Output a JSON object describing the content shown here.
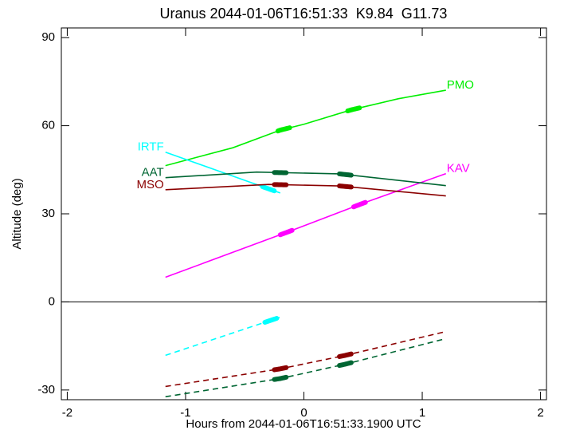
{
  "chart_data": {
    "type": "line",
    "title": "Uranus 2044-01-06T16:51:33  K9.84  G11.73",
    "xlabel": "Hours from 2044-01-06T16:51:33.1900 UTC",
    "ylabel": "Altitude (deg)",
    "xlim": [
      -2.05,
      2.05
    ],
    "xticks": [
      -2,
      -1,
      0,
      1,
      2
    ],
    "ylim": [
      -33.3,
      93.3
    ],
    "yticks": [
      -30,
      0,
      30,
      60,
      90
    ],
    "hline": 0,
    "series": [
      {
        "name": "PMO",
        "color": "#00ee00",
        "style": "solid",
        "label_side": "right",
        "x": [
          -1.17,
          -0.6,
          -0.2,
          0,
          0.4,
          0.8,
          1.2
        ],
        "values": [
          46.4,
          52.5,
          58.5,
          60.5,
          65.4,
          69.2,
          72.1
        ],
        "thick": [
          [
            -0.22,
            -0.12
          ],
          [
            0.37,
            0.47
          ]
        ]
      },
      {
        "name": "KAV",
        "color": "#ff00ff",
        "style": "solid",
        "label_side": "right",
        "x": [
          -1.17,
          -0.15,
          0.5,
          1.2
        ],
        "values": [
          8.4,
          23.6,
          33.6,
          43.7
        ],
        "thick": [
          [
            -0.2,
            -0.1
          ],
          [
            0.42,
            0.52
          ]
        ]
      },
      {
        "name": "IRTF",
        "color": "#00ffff",
        "style": "solid",
        "label_side": "left",
        "x": [
          -1.17,
          -0.2
        ],
        "values": [
          51,
          37.1
        ],
        "thick": [
          [
            -0.35,
            -0.25
          ]
        ]
      },
      {
        "name": "AAT",
        "color": "#006633",
        "style": "solid",
        "label_side": "left",
        "x": [
          -1.17,
          -0.4,
          0.3,
          1.2
        ],
        "values": [
          42.3,
          44.2,
          43.6,
          39.6
        ],
        "thick": [
          [
            -0.25,
            -0.15
          ],
          [
            0.3,
            0.4
          ]
        ]
      },
      {
        "name": "MSO",
        "color": "#8b0000",
        "style": "solid",
        "label_side": "left",
        "x": [
          -1.17,
          -0.3,
          0.3,
          1.2
        ],
        "values": [
          38.2,
          40.0,
          39.5,
          36.1
        ],
        "thick": [
          [
            -0.25,
            -0.15
          ],
          [
            0.3,
            0.4
          ]
        ]
      },
      {
        "color": "#00ffff",
        "style": "dashed",
        "x": [
          -1.17,
          -0.2
        ],
        "values": [
          -18.2,
          -5.2
        ],
        "thick": [
          [
            -0.33,
            -0.23
          ]
        ]
      },
      {
        "color": "#8b0000",
        "style": "dashed",
        "x": [
          -1.17,
          -0.2,
          0.35,
          1.2
        ],
        "values": [
          -28.8,
          -22.8,
          -18.2,
          -10.1
        ],
        "thick": [
          [
            -0.25,
            -0.15
          ],
          [
            0.3,
            0.4
          ]
        ]
      },
      {
        "color": "#006633",
        "style": "dashed",
        "x": [
          -1.17,
          -0.2,
          0.35,
          1.2
        ],
        "values": [
          -32.3,
          -26.1,
          -21.2,
          -12.5
        ],
        "thick": [
          [
            -0.25,
            -0.15
          ],
          [
            0.3,
            0.4
          ]
        ]
      }
    ]
  }
}
